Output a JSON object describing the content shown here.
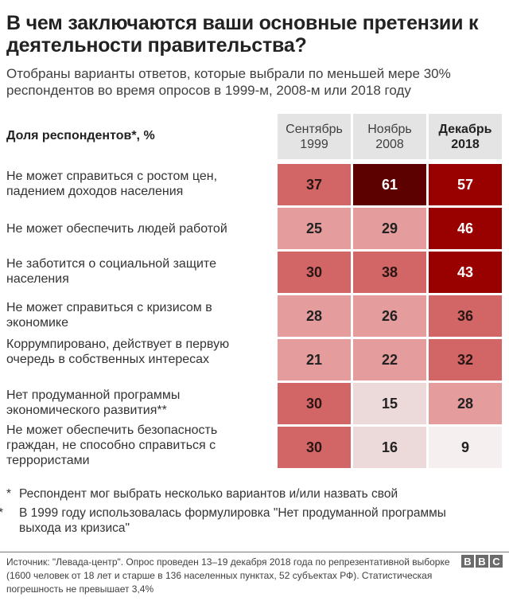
{
  "header": {
    "title": "В чем заключаются ваши основные претензии к деятельности правительства?",
    "subtitle": "Отобраны варианты ответов, которые выбрали по меньшей мере 30% респондентов во время опросов в 1999-м, 2008-м или 2018 году"
  },
  "chart_data": {
    "type": "heatmap",
    "title": "В чем заключаются ваши основные претензии к деятельности правительства?",
    "subtitle": "Отобраны варианты ответов, которые выбрали по меньшей мере 30% респондентов во время опросов в 1999-м, 2008-м или 2018 году",
    "row_header": "Доля респондентов*, %",
    "columns": [
      {
        "line1": "Сентябрь",
        "line2": "1999",
        "bold": false
      },
      {
        "line1": "Ноябрь",
        "line2": "2008",
        "bold": false
      },
      {
        "line1": "Декабрь",
        "line2": "2018",
        "bold": true
      }
    ],
    "rows": [
      {
        "label": "Не может справиться с ростом цен, падением доходов населения",
        "values": [
          37,
          61,
          57
        ]
      },
      {
        "label": "Не может обеспечить людей работой",
        "values": [
          25,
          29,
          46
        ]
      },
      {
        "label": "Не заботится о социальной защите населения",
        "values": [
          30,
          38,
          43
        ]
      },
      {
        "label": "Не может справиться с кризисом в экономике",
        "values": [
          28,
          26,
          36
        ]
      },
      {
        "label": "Коррумпировано, действует в первую очередь в собственных интересах",
        "values": [
          21,
          22,
          32
        ]
      },
      {
        "label": "Нет продуманной программы экономического развития**",
        "values": [
          30,
          15,
          28
        ]
      },
      {
        "label": "Не может обеспечить безопасность граждан, не способно справиться с террористами",
        "values": [
          30,
          16,
          9
        ]
      }
    ],
    "color_scale": [
      {
        "min": 0,
        "max": 10,
        "color": "#f5efef",
        "text": "#222222"
      },
      {
        "min": 11,
        "max": 20,
        "color": "#ecdada",
        "text": "#222222"
      },
      {
        "min": 21,
        "max": 29,
        "color": "#e49c9c",
        "text": "#222222"
      },
      {
        "min": 30,
        "max": 39,
        "color": "#d26565",
        "text": "#2a1515"
      },
      {
        "min": 40,
        "max": 59,
        "color": "#990000",
        "text": "#ffffff"
      },
      {
        "min": 60,
        "max": 100,
        "color": "#5c0000",
        "text": "#ffffff"
      }
    ]
  },
  "footnotes": [
    {
      "mark": "*",
      "text": "Респондент мог выбрать несколько вариантов и/или назвать свой"
    },
    {
      "mark": "**",
      "text": "В 1999 году использовалась формулировка \"Нет продуманной программы выхода из кризиса\""
    }
  ],
  "source": "Источник: \"Левада-центр\". Опрос проведен 13–19 декабря 2018 года по репрезентативной выборке (1600 человек от 18 лет и старше в 136 населенных пунктах, 52 субъектах РФ).  Статистическая погрешность не превышает 3,4%",
  "logo": [
    "B",
    "B",
    "C"
  ]
}
